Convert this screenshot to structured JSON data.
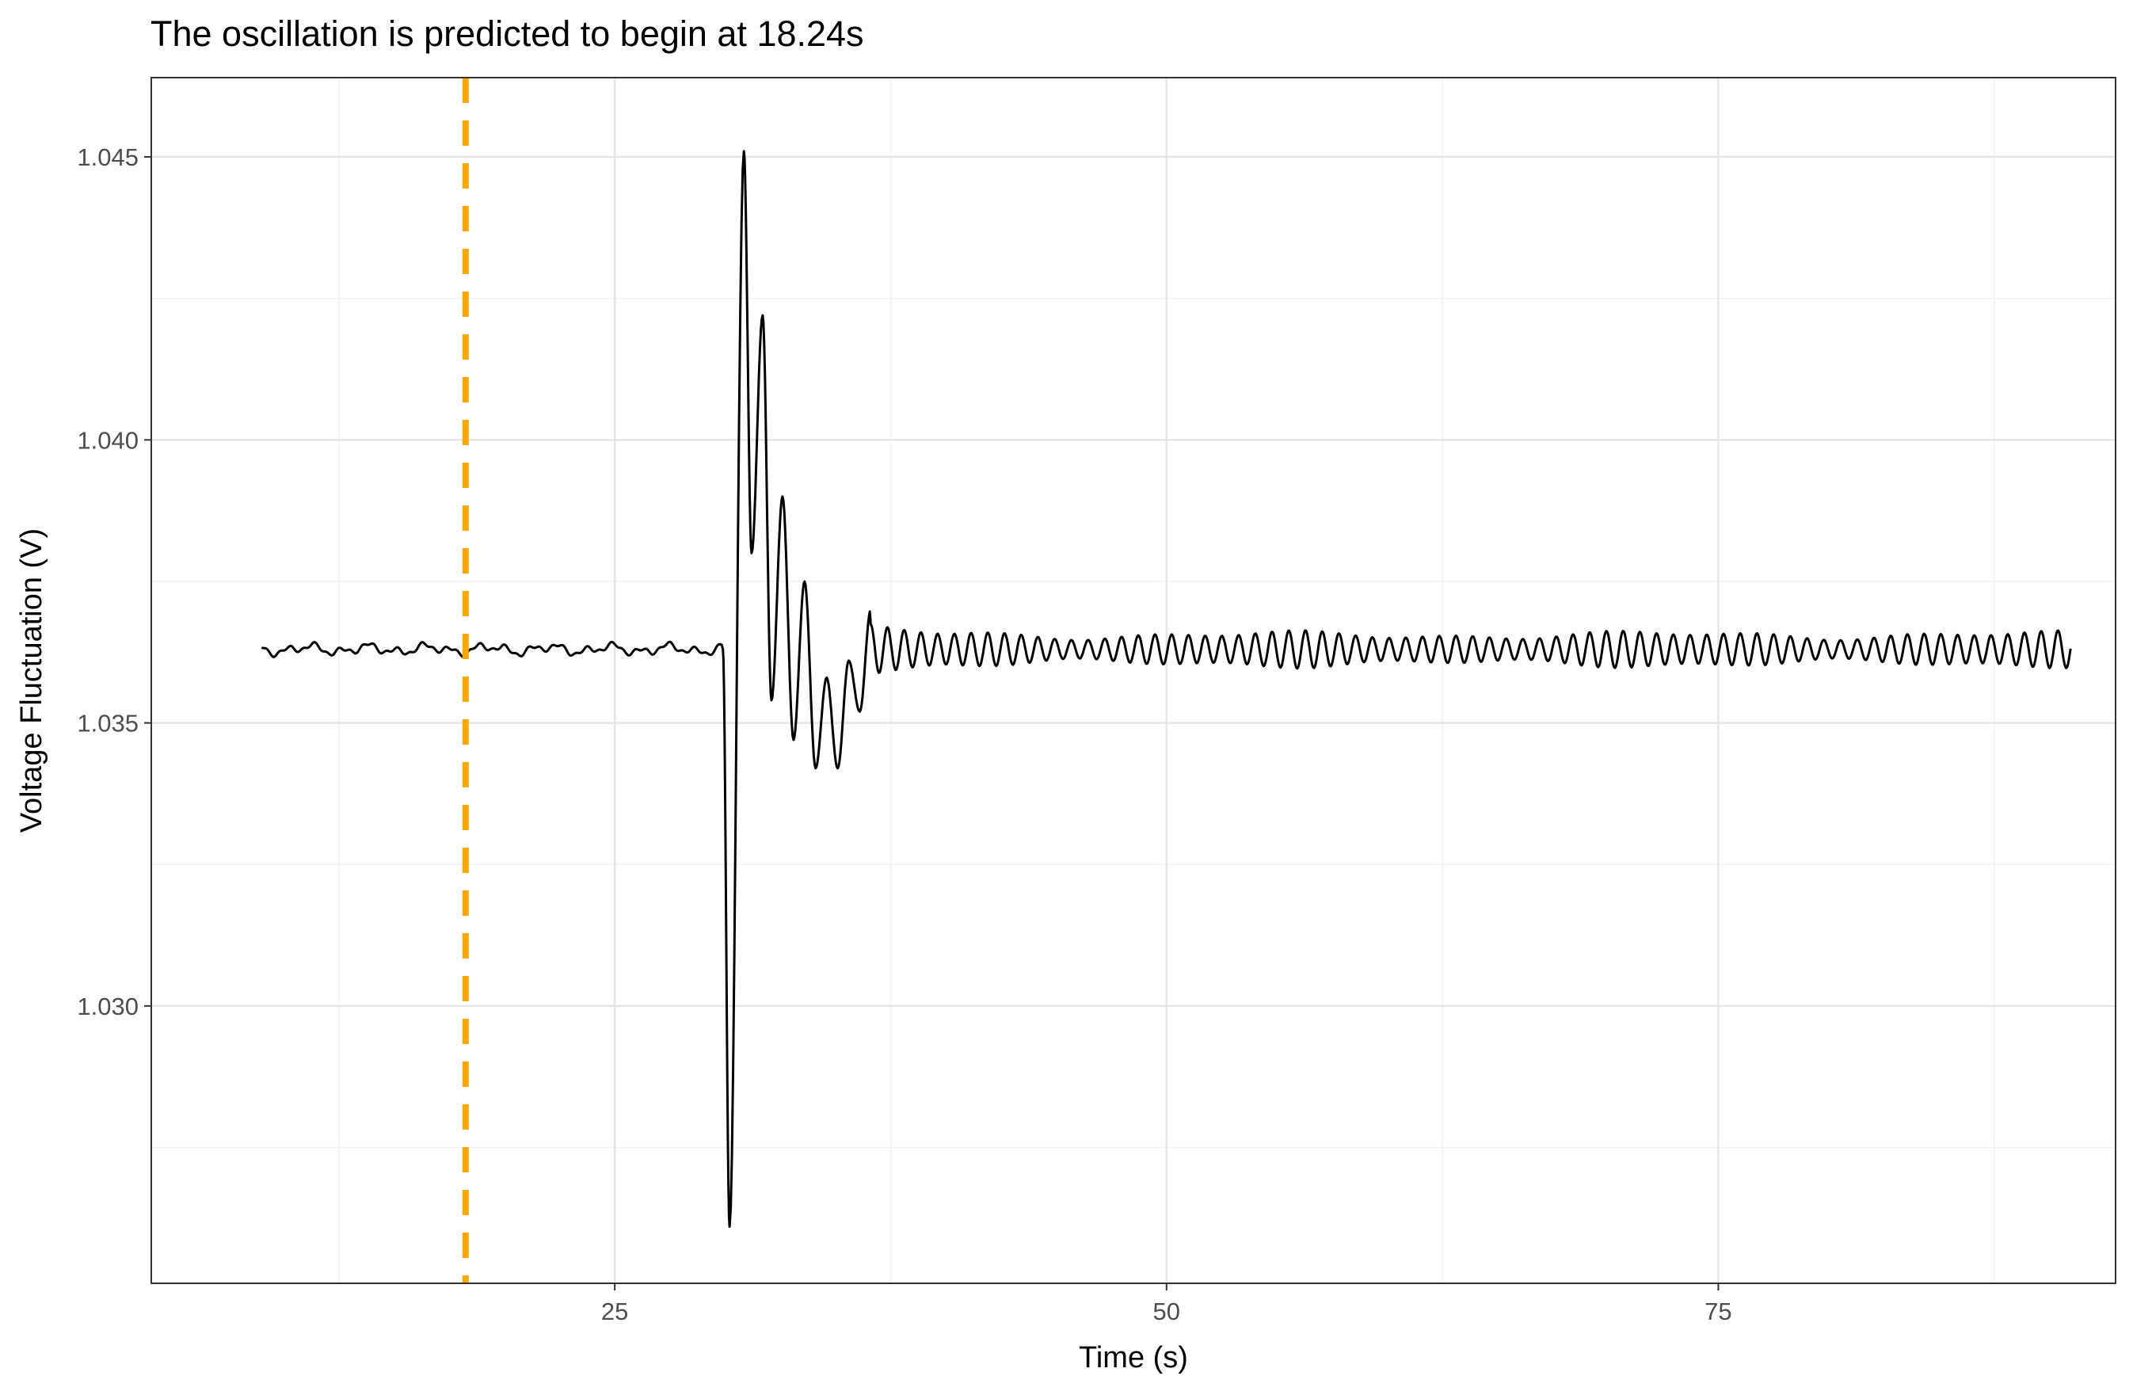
{
  "chart_data": {
    "type": "line",
    "title": "The oscillation is predicted to begin at 18.24s",
    "xlabel": "Time (s)",
    "ylabel": "Voltage Fluctuation (V)",
    "xlim": [
      4.0,
      93.0
    ],
    "ylim": [
      1.0251,
      1.0464
    ],
    "x_ticks": [
      25,
      50,
      75
    ],
    "x_tick_labels": [
      "25",
      "50",
      "75"
    ],
    "y_ticks": [
      1.03,
      1.035,
      1.04,
      1.045
    ],
    "y_tick_labels": [
      "1.030",
      "1.035",
      "1.040",
      "1.045"
    ],
    "grid": true,
    "legend": "none",
    "reference_line": {
      "x": 18.24,
      "style": "dashed",
      "color": "#FFA500"
    },
    "series": [
      {
        "color": "#000000",
        "sampling": "piecewise: 9.0-29.0 s ambient noise, then a damped oscillation starting near 30.0 s, sustained oscillation ~1.3 Hz to 91.0 s",
        "key_points": [
          {
            "x": 9.0,
            "y": 1.0364
          },
          {
            "x": 18.24,
            "y": 1.0362
          },
          {
            "x": 29.0,
            "y": 1.0363
          },
          {
            "x": 29.9,
            "y": 1.0363
          },
          {
            "x": 30.2,
            "y": 1.0261
          },
          {
            "x": 30.85,
            "y": 1.0451
          },
          {
            "x": 31.2,
            "y": 1.038
          },
          {
            "x": 31.7,
            "y": 1.0422
          },
          {
            "x": 32.1,
            "y": 1.0354
          },
          {
            "x": 32.6,
            "y": 1.039
          },
          {
            "x": 33.1,
            "y": 1.0347
          },
          {
            "x": 33.6,
            "y": 1.0375
          },
          {
            "x": 34.1,
            "y": 1.0342
          },
          {
            "x": 34.6,
            "y": 1.0358
          },
          {
            "x": 35.1,
            "y": 1.0342
          },
          {
            "x": 35.6,
            "y": 1.0361
          },
          {
            "x": 36.1,
            "y": 1.0352
          },
          {
            "x": 36.6,
            "y": 1.037
          },
          {
            "x": 50.0,
            "y": 1.0363
          },
          {
            "x": 75.0,
            "y": 1.0364
          },
          {
            "x": 91.0,
            "y": 1.0362
          }
        ]
      }
    ]
  }
}
